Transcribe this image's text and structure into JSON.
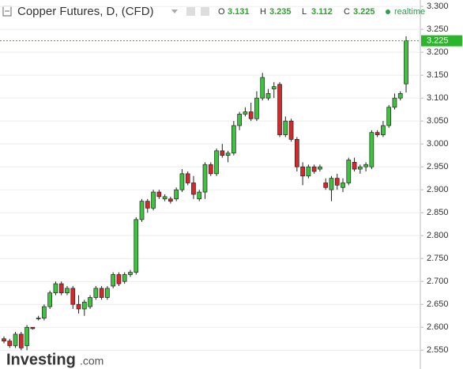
{
  "chart_data": {
    "type": "candlestick",
    "title": "Copper Futures, D, (CFD)",
    "status": "realtime",
    "ohlc_header": [
      {
        "label": "O",
        "value": 3.131
      },
      {
        "label": "H",
        "value": 3.235
      },
      {
        "label": "L",
        "value": 3.112
      },
      {
        "label": "C",
        "value": 3.225
      }
    ],
    "open": [
      2.575,
      2.57,
      2.56,
      2.585,
      2.56,
      2.6,
      2.62,
      2.62,
      2.645,
      2.675,
      2.695,
      2.675,
      2.685,
      2.65,
      2.64,
      2.645,
      2.665,
      2.685,
      2.665,
      2.69,
      2.715,
      2.7,
      2.715,
      2.72,
      2.835,
      2.875,
      2.86,
      2.895,
      2.88,
      2.88,
      2.88,
      2.9,
      2.935,
      2.915,
      2.88,
      2.895,
      2.955,
      2.935,
      2.985,
      2.975,
      2.98,
      3.04,
      3.065,
      3.07,
      3.055,
      3.1,
      3.1,
      3.12,
      3.13,
      3.02,
      3.05,
      3.01,
      2.95,
      2.93,
      2.95,
      2.945,
      2.915,
      2.9,
      2.925,
      2.905,
      2.915,
      2.96,
      2.945,
      2.95,
      2.95,
      3.025,
      3.02,
      3.04,
      3.08,
      3.1,
      3.131
    ],
    "high": [
      2.58,
      2.575,
      2.59,
      2.59,
      2.605,
      2.6,
      2.625,
      2.65,
      2.68,
      2.7,
      2.7,
      2.69,
      2.69,
      2.67,
      2.66,
      2.67,
      2.69,
      2.69,
      2.69,
      2.72,
      2.72,
      2.72,
      2.725,
      2.84,
      2.88,
      2.88,
      2.9,
      2.9,
      2.89,
      2.885,
      2.905,
      2.945,
      2.94,
      2.93,
      2.9,
      2.96,
      2.96,
      2.99,
      3.0,
      2.985,
      3.05,
      3.07,
      3.08,
      3.09,
      3.115,
      3.155,
      3.12,
      3.135,
      3.135,
      3.06,
      3.055,
      3.015,
      2.96,
      2.955,
      2.955,
      2.955,
      2.925,
      2.93,
      2.935,
      2.925,
      2.97,
      2.97,
      2.955,
      2.96,
      3.03,
      3.03,
      3.05,
      3.085,
      3.11,
      3.115,
      3.235
    ],
    "low": [
      2.565,
      2.555,
      2.555,
      2.55,
      2.55,
      2.595,
      2.615,
      2.615,
      2.64,
      2.67,
      2.67,
      2.67,
      2.64,
      2.63,
      2.625,
      2.64,
      2.66,
      2.66,
      2.66,
      2.685,
      2.69,
      2.695,
      2.71,
      2.715,
      2.83,
      2.85,
      2.855,
      2.88,
      2.875,
      2.87,
      2.875,
      2.895,
      2.91,
      2.88,
      2.875,
      2.88,
      2.93,
      2.93,
      2.97,
      2.96,
      2.975,
      3.03,
      3.06,
      3.05,
      3.05,
      3.095,
      3.095,
      3.1,
      3.015,
      3.015,
      3.005,
      2.94,
      2.91,
      2.925,
      2.935,
      2.94,
      2.9,
      2.875,
      2.9,
      2.895,
      2.91,
      2.94,
      2.935,
      2.94,
      2.945,
      3.015,
      3.015,
      3.035,
      3.075,
      3.095,
      3.112
    ],
    "close": [
      2.57,
      2.56,
      2.585,
      2.555,
      2.6,
      2.597,
      2.62,
      2.645,
      2.675,
      2.695,
      2.675,
      2.685,
      2.65,
      2.64,
      2.655,
      2.665,
      2.685,
      2.665,
      2.685,
      2.715,
      2.695,
      2.715,
      2.72,
      2.835,
      2.875,
      2.86,
      2.895,
      2.885,
      2.885,
      2.875,
      2.9,
      2.935,
      2.915,
      2.89,
      2.895,
      2.955,
      2.935,
      2.985,
      2.975,
      2.98,
      3.04,
      3.065,
      3.07,
      3.055,
      3.1,
      3.145,
      3.11,
      3.125,
      3.02,
      3.05,
      3.01,
      2.95,
      2.93,
      2.95,
      2.94,
      2.95,
      2.905,
      2.925,
      2.91,
      2.915,
      2.965,
      2.945,
      2.95,
      2.955,
      3.025,
      3.02,
      3.04,
      3.08,
      3.1,
      3.11,
      3.225
    ],
    "last_price": 3.225,
    "ylim": [
      2.509,
      3.314
    ],
    "yticks": [
      {
        "value": 2.55,
        "label": "2.550"
      },
      {
        "value": 2.6,
        "label": "2.600"
      },
      {
        "value": 2.65,
        "label": "2.650"
      },
      {
        "value": 2.7,
        "label": "2.700"
      },
      {
        "value": 2.75,
        "label": "2.750"
      },
      {
        "value": 2.8,
        "label": "2.800"
      },
      {
        "value": 2.85,
        "label": "2.850"
      },
      {
        "value": 2.9,
        "label": "2.900"
      },
      {
        "value": 2.95,
        "label": "2.950"
      },
      {
        "value": 3.0,
        "label": "3.000"
      },
      {
        "value": 3.05,
        "label": "3.050"
      },
      {
        "value": 3.1,
        "label": "3.100"
      },
      {
        "value": 3.15,
        "label": "3.150"
      },
      {
        "value": 3.2,
        "label": "3.200"
      },
      {
        "value": 3.25,
        "label": "3.250"
      },
      {
        "value": 3.3,
        "label": "3.300"
      }
    ],
    "up_color": "#3dc43d",
    "down_color": "#d62828",
    "grid": true
  },
  "footer": {
    "logo": "Investing",
    "logo_suffix": ".com"
  }
}
